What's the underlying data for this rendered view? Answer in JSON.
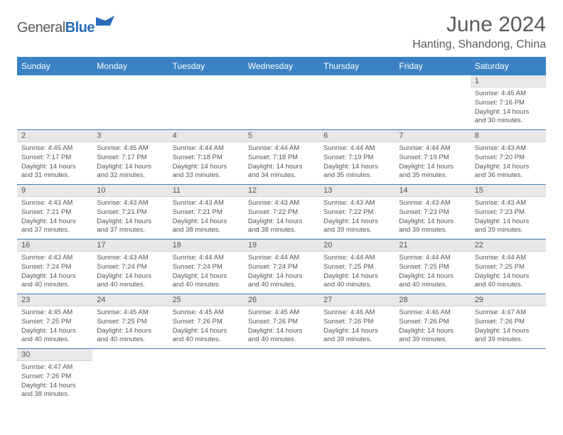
{
  "brand": {
    "part1": "General",
    "part2": "Blue"
  },
  "title": "June 2024",
  "location": "Hanting, Shandong, China",
  "colors": {
    "header_bg": "#3b82c4",
    "header_fg": "#ffffff",
    "daynum_bg": "#e8e8e8",
    "text": "#555555",
    "rule": "#3b82c4"
  },
  "day_headers": [
    "Sunday",
    "Monday",
    "Tuesday",
    "Wednesday",
    "Thursday",
    "Friday",
    "Saturday"
  ],
  "days": [
    {
      "n": 1,
      "sr": "4:45 AM",
      "ss": "7:16 PM",
      "dl": "14 hours and 30 minutes."
    },
    {
      "n": 2,
      "sr": "4:45 AM",
      "ss": "7:17 PM",
      "dl": "14 hours and 31 minutes."
    },
    {
      "n": 3,
      "sr": "4:45 AM",
      "ss": "7:17 PM",
      "dl": "14 hours and 32 minutes."
    },
    {
      "n": 4,
      "sr": "4:44 AM",
      "ss": "7:18 PM",
      "dl": "14 hours and 33 minutes."
    },
    {
      "n": 5,
      "sr": "4:44 AM",
      "ss": "7:18 PM",
      "dl": "14 hours and 34 minutes."
    },
    {
      "n": 6,
      "sr": "4:44 AM",
      "ss": "7:19 PM",
      "dl": "14 hours and 35 minutes."
    },
    {
      "n": 7,
      "sr": "4:44 AM",
      "ss": "7:19 PM",
      "dl": "14 hours and 35 minutes."
    },
    {
      "n": 8,
      "sr": "4:43 AM",
      "ss": "7:20 PM",
      "dl": "14 hours and 36 minutes."
    },
    {
      "n": 9,
      "sr": "4:43 AM",
      "ss": "7:21 PM",
      "dl": "14 hours and 37 minutes."
    },
    {
      "n": 10,
      "sr": "4:43 AM",
      "ss": "7:21 PM",
      "dl": "14 hours and 37 minutes."
    },
    {
      "n": 11,
      "sr": "4:43 AM",
      "ss": "7:21 PM",
      "dl": "14 hours and 38 minutes."
    },
    {
      "n": 12,
      "sr": "4:43 AM",
      "ss": "7:22 PM",
      "dl": "14 hours and 38 minutes."
    },
    {
      "n": 13,
      "sr": "4:43 AM",
      "ss": "7:22 PM",
      "dl": "14 hours and 39 minutes."
    },
    {
      "n": 14,
      "sr": "4:43 AM",
      "ss": "7:23 PM",
      "dl": "14 hours and 39 minutes."
    },
    {
      "n": 15,
      "sr": "4:43 AM",
      "ss": "7:23 PM",
      "dl": "14 hours and 39 minutes."
    },
    {
      "n": 16,
      "sr": "4:43 AM",
      "ss": "7:24 PM",
      "dl": "14 hours and 40 minutes."
    },
    {
      "n": 17,
      "sr": "4:43 AM",
      "ss": "7:24 PM",
      "dl": "14 hours and 40 minutes."
    },
    {
      "n": 18,
      "sr": "4:44 AM",
      "ss": "7:24 PM",
      "dl": "14 hours and 40 minutes."
    },
    {
      "n": 19,
      "sr": "4:44 AM",
      "ss": "7:24 PM",
      "dl": "14 hours and 40 minutes."
    },
    {
      "n": 20,
      "sr": "4:44 AM",
      "ss": "7:25 PM",
      "dl": "14 hours and 40 minutes."
    },
    {
      "n": 21,
      "sr": "4:44 AM",
      "ss": "7:25 PM",
      "dl": "14 hours and 40 minutes."
    },
    {
      "n": 22,
      "sr": "4:44 AM",
      "ss": "7:25 PM",
      "dl": "14 hours and 40 minutes."
    },
    {
      "n": 23,
      "sr": "4:45 AM",
      "ss": "7:25 PM",
      "dl": "14 hours and 40 minutes."
    },
    {
      "n": 24,
      "sr": "4:45 AM",
      "ss": "7:25 PM",
      "dl": "14 hours and 40 minutes."
    },
    {
      "n": 25,
      "sr": "4:45 AM",
      "ss": "7:26 PM",
      "dl": "14 hours and 40 minutes."
    },
    {
      "n": 26,
      "sr": "4:45 AM",
      "ss": "7:26 PM",
      "dl": "14 hours and 40 minutes."
    },
    {
      "n": 27,
      "sr": "4:46 AM",
      "ss": "7:26 PM",
      "dl": "14 hours and 39 minutes."
    },
    {
      "n": 28,
      "sr": "4:46 AM",
      "ss": "7:26 PM",
      "dl": "14 hours and 39 minutes."
    },
    {
      "n": 29,
      "sr": "4:47 AM",
      "ss": "7:26 PM",
      "dl": "14 hours and 39 minutes."
    },
    {
      "n": 30,
      "sr": "4:47 AM",
      "ss": "7:26 PM",
      "dl": "14 hours and 38 minutes."
    }
  ],
  "labels": {
    "sunrise": "Sunrise:",
    "sunset": "Sunset:",
    "daylight": "Daylight:"
  },
  "first_day_of_week_index": 6,
  "days_in_month": 30
}
